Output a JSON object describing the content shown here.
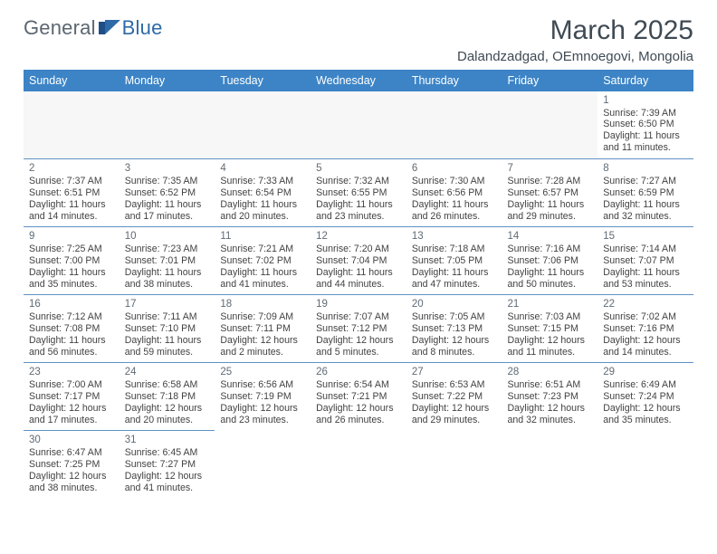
{
  "logo": {
    "part1": "General",
    "part2": "Blue"
  },
  "header": {
    "title": "March 2025",
    "subtitle": "Dalandzadgad, OEmnoegovi, Mongolia"
  },
  "colors": {
    "header_bg": "#3c84c6",
    "header_text": "#ffffff",
    "row_divider": "#5f92c4",
    "title_text": "#3f4a54",
    "logo_gray": "#5c6670",
    "logo_blue": "#2f6aa8",
    "body_text": "#424242",
    "leading_bg": "#f7f7f7"
  },
  "weekdays": [
    "Sunday",
    "Monday",
    "Tuesday",
    "Wednesday",
    "Thursday",
    "Friday",
    "Saturday"
  ],
  "weeks": [
    [
      {
        "leading": true
      },
      {
        "leading": true
      },
      {
        "leading": true
      },
      {
        "leading": true
      },
      {
        "leading": true
      },
      {
        "leading": true
      },
      {
        "day": "1",
        "sunrise": "Sunrise: 7:39 AM",
        "sunset": "Sunset: 6:50 PM",
        "daylight": "Daylight: 11 hours and 11 minutes."
      }
    ],
    [
      {
        "day": "2",
        "sunrise": "Sunrise: 7:37 AM",
        "sunset": "Sunset: 6:51 PM",
        "daylight": "Daylight: 11 hours and 14 minutes."
      },
      {
        "day": "3",
        "sunrise": "Sunrise: 7:35 AM",
        "sunset": "Sunset: 6:52 PM",
        "daylight": "Daylight: 11 hours and 17 minutes."
      },
      {
        "day": "4",
        "sunrise": "Sunrise: 7:33 AM",
        "sunset": "Sunset: 6:54 PM",
        "daylight": "Daylight: 11 hours and 20 minutes."
      },
      {
        "day": "5",
        "sunrise": "Sunrise: 7:32 AM",
        "sunset": "Sunset: 6:55 PM",
        "daylight": "Daylight: 11 hours and 23 minutes."
      },
      {
        "day": "6",
        "sunrise": "Sunrise: 7:30 AM",
        "sunset": "Sunset: 6:56 PM",
        "daylight": "Daylight: 11 hours and 26 minutes."
      },
      {
        "day": "7",
        "sunrise": "Sunrise: 7:28 AM",
        "sunset": "Sunset: 6:57 PM",
        "daylight": "Daylight: 11 hours and 29 minutes."
      },
      {
        "day": "8",
        "sunrise": "Sunrise: 7:27 AM",
        "sunset": "Sunset: 6:59 PM",
        "daylight": "Daylight: 11 hours and 32 minutes."
      }
    ],
    [
      {
        "day": "9",
        "sunrise": "Sunrise: 7:25 AM",
        "sunset": "Sunset: 7:00 PM",
        "daylight": "Daylight: 11 hours and 35 minutes."
      },
      {
        "day": "10",
        "sunrise": "Sunrise: 7:23 AM",
        "sunset": "Sunset: 7:01 PM",
        "daylight": "Daylight: 11 hours and 38 minutes."
      },
      {
        "day": "11",
        "sunrise": "Sunrise: 7:21 AM",
        "sunset": "Sunset: 7:02 PM",
        "daylight": "Daylight: 11 hours and 41 minutes."
      },
      {
        "day": "12",
        "sunrise": "Sunrise: 7:20 AM",
        "sunset": "Sunset: 7:04 PM",
        "daylight": "Daylight: 11 hours and 44 minutes."
      },
      {
        "day": "13",
        "sunrise": "Sunrise: 7:18 AM",
        "sunset": "Sunset: 7:05 PM",
        "daylight": "Daylight: 11 hours and 47 minutes."
      },
      {
        "day": "14",
        "sunrise": "Sunrise: 7:16 AM",
        "sunset": "Sunset: 7:06 PM",
        "daylight": "Daylight: 11 hours and 50 minutes."
      },
      {
        "day": "15",
        "sunrise": "Sunrise: 7:14 AM",
        "sunset": "Sunset: 7:07 PM",
        "daylight": "Daylight: 11 hours and 53 minutes."
      }
    ],
    [
      {
        "day": "16",
        "sunrise": "Sunrise: 7:12 AM",
        "sunset": "Sunset: 7:08 PM",
        "daylight": "Daylight: 11 hours and 56 minutes."
      },
      {
        "day": "17",
        "sunrise": "Sunrise: 7:11 AM",
        "sunset": "Sunset: 7:10 PM",
        "daylight": "Daylight: 11 hours and 59 minutes."
      },
      {
        "day": "18",
        "sunrise": "Sunrise: 7:09 AM",
        "sunset": "Sunset: 7:11 PM",
        "daylight": "Daylight: 12 hours and 2 minutes."
      },
      {
        "day": "19",
        "sunrise": "Sunrise: 7:07 AM",
        "sunset": "Sunset: 7:12 PM",
        "daylight": "Daylight: 12 hours and 5 minutes."
      },
      {
        "day": "20",
        "sunrise": "Sunrise: 7:05 AM",
        "sunset": "Sunset: 7:13 PM",
        "daylight": "Daylight: 12 hours and 8 minutes."
      },
      {
        "day": "21",
        "sunrise": "Sunrise: 7:03 AM",
        "sunset": "Sunset: 7:15 PM",
        "daylight": "Daylight: 12 hours and 11 minutes."
      },
      {
        "day": "22",
        "sunrise": "Sunrise: 7:02 AM",
        "sunset": "Sunset: 7:16 PM",
        "daylight": "Daylight: 12 hours and 14 minutes."
      }
    ],
    [
      {
        "day": "23",
        "sunrise": "Sunrise: 7:00 AM",
        "sunset": "Sunset: 7:17 PM",
        "daylight": "Daylight: 12 hours and 17 minutes."
      },
      {
        "day": "24",
        "sunrise": "Sunrise: 6:58 AM",
        "sunset": "Sunset: 7:18 PM",
        "daylight": "Daylight: 12 hours and 20 minutes."
      },
      {
        "day": "25",
        "sunrise": "Sunrise: 6:56 AM",
        "sunset": "Sunset: 7:19 PM",
        "daylight": "Daylight: 12 hours and 23 minutes."
      },
      {
        "day": "26",
        "sunrise": "Sunrise: 6:54 AM",
        "sunset": "Sunset: 7:21 PM",
        "daylight": "Daylight: 12 hours and 26 minutes."
      },
      {
        "day": "27",
        "sunrise": "Sunrise: 6:53 AM",
        "sunset": "Sunset: 7:22 PM",
        "daylight": "Daylight: 12 hours and 29 minutes."
      },
      {
        "day": "28",
        "sunrise": "Sunrise: 6:51 AM",
        "sunset": "Sunset: 7:23 PM",
        "daylight": "Daylight: 12 hours and 32 minutes."
      },
      {
        "day": "29",
        "sunrise": "Sunrise: 6:49 AM",
        "sunset": "Sunset: 7:24 PM",
        "daylight": "Daylight: 12 hours and 35 minutes."
      }
    ],
    [
      {
        "day": "30",
        "sunrise": "Sunrise: 6:47 AM",
        "sunset": "Sunset: 7:25 PM",
        "daylight": "Daylight: 12 hours and 38 minutes."
      },
      {
        "day": "31",
        "sunrise": "Sunrise: 6:45 AM",
        "sunset": "Sunset: 7:27 PM",
        "daylight": "Daylight: 12 hours and 41 minutes."
      },
      {
        "trailing": true
      },
      {
        "trailing": true
      },
      {
        "trailing": true
      },
      {
        "trailing": true
      },
      {
        "trailing": true
      }
    ]
  ]
}
